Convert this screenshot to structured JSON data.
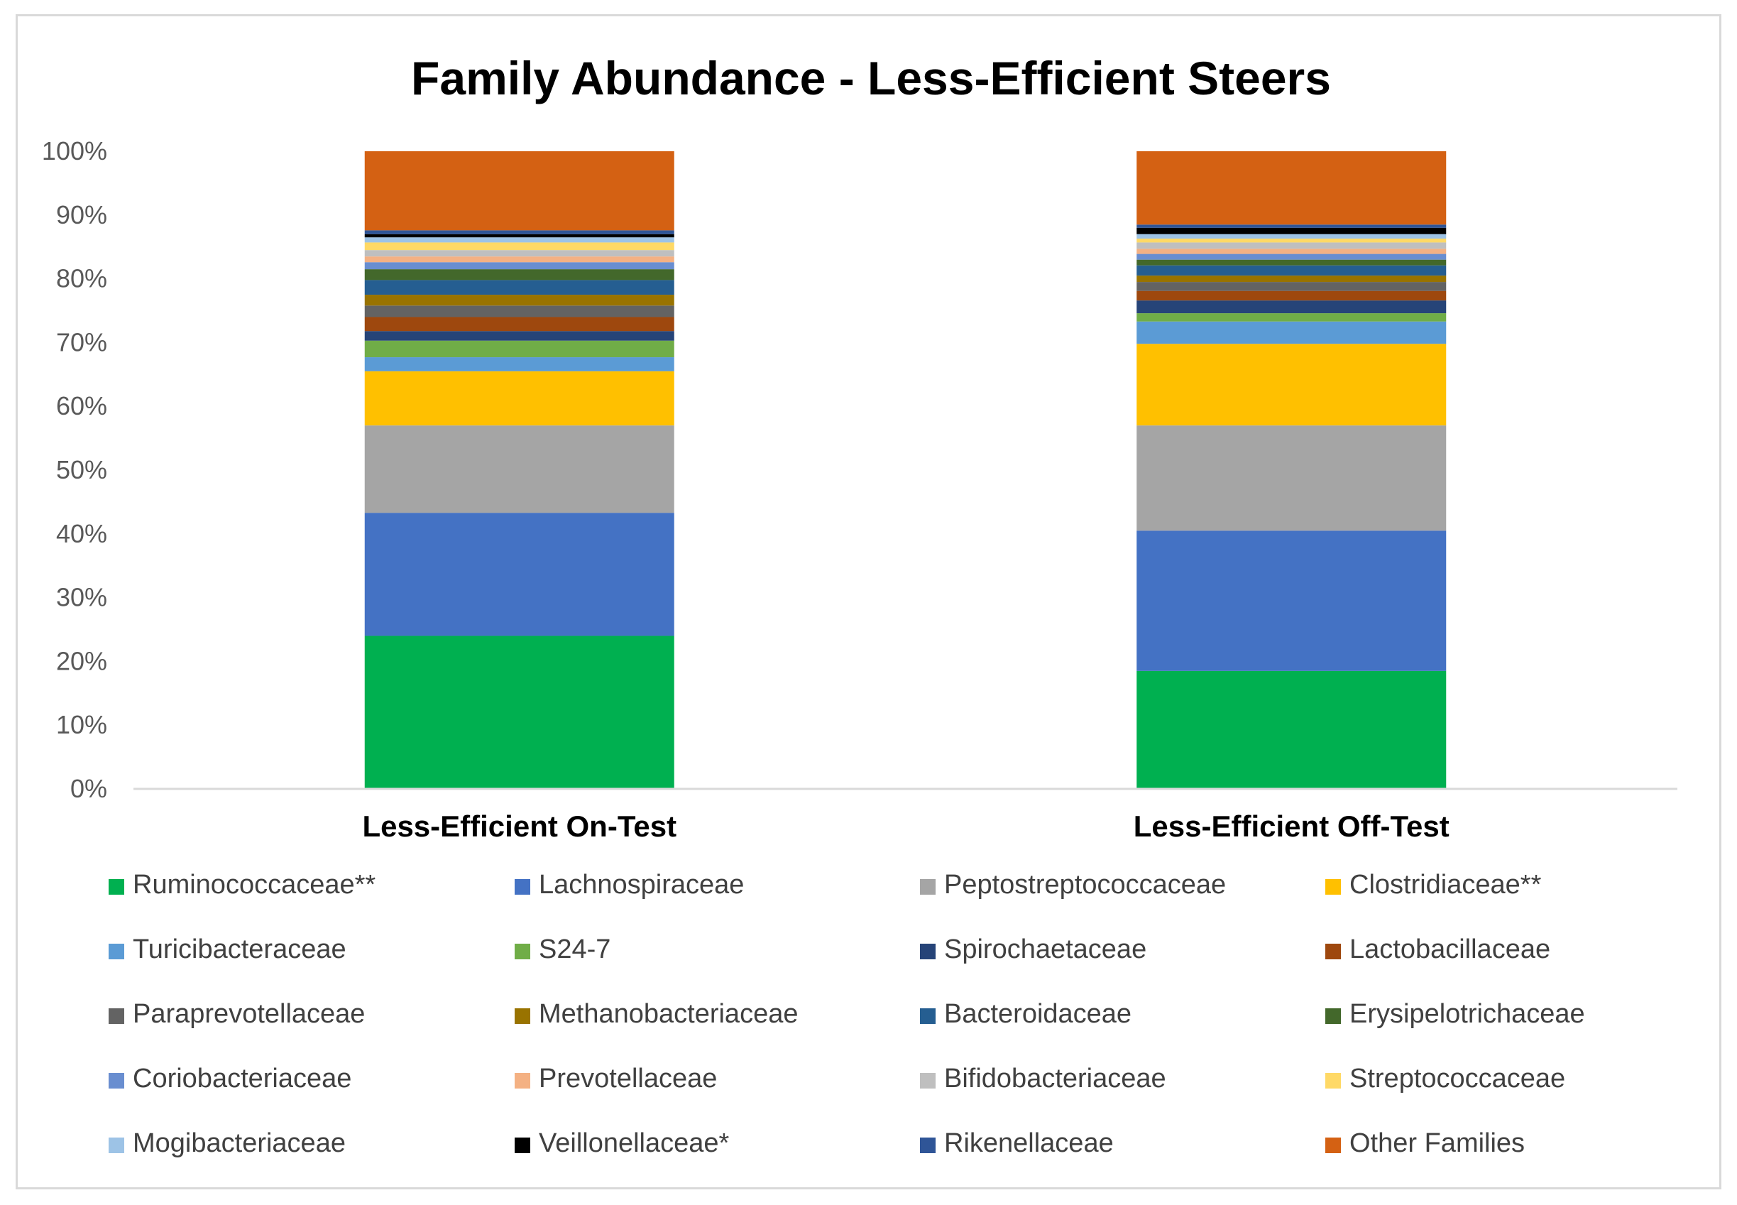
{
  "chart_data": {
    "type": "bar",
    "stacked": true,
    "title": "Family Abundance - Less-Efficient Steers",
    "xlabel": "",
    "ylabel": "",
    "ylim": [
      0,
      100
    ],
    "y_tick_labels": [
      "0%",
      "10%",
      "20%",
      "30%",
      "40%",
      "50%",
      "60%",
      "70%",
      "80%",
      "90%",
      "100%"
    ],
    "categories": [
      "Less-Efficient On-Test",
      "Less-Efficient Off-Test"
    ],
    "grid": false,
    "legend_position": "bottom",
    "series": [
      {
        "name": "Ruminococcaceae**",
        "color": "#00b050",
        "values": [
          24.0,
          18.5
        ]
      },
      {
        "name": "Lachnospiraceae",
        "color": "#4472c4",
        "values": [
          19.3,
          22.0
        ]
      },
      {
        "name": "Peptostreptococcaceae",
        "color": "#a5a5a5",
        "values": [
          13.7,
          16.5
        ]
      },
      {
        "name": "Clostridiaceae**",
        "color": "#ffc000",
        "values": [
          8.5,
          12.8
        ]
      },
      {
        "name": "Turicibacteraceae",
        "color": "#5b9bd5",
        "values": [
          2.2,
          3.5
        ]
      },
      {
        "name": "S24-7",
        "color": "#70ad47",
        "values": [
          2.6,
          1.3
        ]
      },
      {
        "name": "Spirochaetaceae",
        "color": "#264478",
        "values": [
          1.5,
          2.0
        ]
      },
      {
        "name": "Lactobacillaceae",
        "color": "#9e480e",
        "values": [
          2.2,
          1.5
        ]
      },
      {
        "name": "Paraprevotellaceae",
        "color": "#636363",
        "values": [
          1.8,
          1.4
        ]
      },
      {
        "name": "Methanobacteriaceae",
        "color": "#997300",
        "values": [
          1.7,
          1.0
        ]
      },
      {
        "name": "Bacteroidaceae",
        "color": "#255e91",
        "values": [
          2.3,
          1.6
        ]
      },
      {
        "name": "Erysipelotrichaceae",
        "color": "#43682b",
        "values": [
          1.7,
          0.9
        ]
      },
      {
        "name": "Coriobacteriaceae",
        "color": "#698ed0",
        "values": [
          1.1,
          0.9
        ]
      },
      {
        "name": "Prevotellaceae",
        "color": "#f4b183",
        "values": [
          0.9,
          0.8
        ]
      },
      {
        "name": "Bifidobacteriaceae",
        "color": "#bfbfbf",
        "values": [
          1.0,
          1.0
        ]
      },
      {
        "name": "Streptococcaceae",
        "color": "#ffd966",
        "values": [
          1.2,
          0.6
        ]
      },
      {
        "name": "Mogibacteriaceae",
        "color": "#9dc3e6",
        "values": [
          0.8,
          0.7
        ]
      },
      {
        "name": "Veillonellaceae*",
        "color": "#000000",
        "values": [
          0.5,
          1.0
        ]
      },
      {
        "name": "Rikenellaceae",
        "color": "#2f5597",
        "values": [
          0.6,
          0.5
        ]
      },
      {
        "name": "Other Families",
        "color": "#d46113",
        "values": [
          12.4,
          11.5
        ]
      }
    ]
  }
}
